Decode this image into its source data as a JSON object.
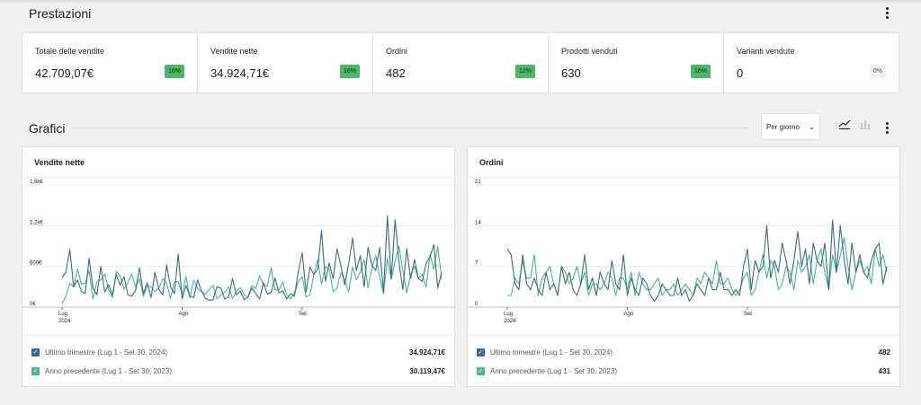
{
  "performance": {
    "title": "Prestazioni",
    "kpis": [
      {
        "label": "Totale delle vendite",
        "value": "42.709,07€",
        "delta": "16%",
        "trend": "up"
      },
      {
        "label": "Vendite nette",
        "value": "34.924,71€",
        "delta": "16%",
        "trend": "up"
      },
      {
        "label": "Ordini",
        "value": "482",
        "delta": "12%",
        "trend": "up"
      },
      {
        "label": "Prodotti venduti",
        "value": "630",
        "delta": "16%",
        "trend": "up"
      },
      {
        "label": "Varianti vendute",
        "value": "0",
        "delta": "0%",
        "trend": "flat"
      }
    ]
  },
  "charts_section": {
    "title": "Grafici",
    "interval_select": {
      "value": "Per giorno"
    },
    "icons": [
      "line-chart-icon",
      "bar-chart-icon",
      "more-vertical-icon"
    ]
  },
  "colors": {
    "current": "#3d6a8c",
    "previous": "#4ab88a",
    "badge_up": "#4ab866"
  },
  "cards": [
    {
      "title": "Vendite nette",
      "legend": [
        {
          "label": "Ultimo trimestre (Lug 1 - Set 30, 2024)",
          "total": "34.924,71€"
        },
        {
          "label": "Anno precedente (Lug 1 - Set 30, 2023)",
          "total": "30.119,47€"
        }
      ]
    },
    {
      "title": "Ordini",
      "legend": [
        {
          "label": "Ultimo trimestre (Lug 1 - Set 30, 2024)",
          "total": "482"
        },
        {
          "label": "Anno precedente (Lug 1 - Set 30, 2023)",
          "total": "431"
        }
      ]
    }
  ],
  "chart_data": [
    {
      "type": "line",
      "title": "Vendite nette",
      "y_ticks": [
        "0€",
        "600€",
        "1,2k€",
        "1,8k€"
      ],
      "ylim": [
        0,
        1800
      ],
      "x_ticks": [
        {
          "day": 0,
          "label": "Lug",
          "sub": "2024"
        },
        {
          "day": 31,
          "label": "Ago",
          "sub": ""
        },
        {
          "day": 62,
          "label": "Set",
          "sub": ""
        }
      ],
      "series": [
        {
          "name": "Ultimo trimestre (Lug 1 - Set 30, 2024)",
          "color": "#3d6a8c",
          "values": [
            430,
            520,
            850,
            300,
            400,
            230,
            200,
            720,
            280,
            180,
            600,
            220,
            330,
            180,
            480,
            320,
            450,
            180,
            160,
            250,
            580,
            200,
            360,
            140,
            510,
            260,
            180,
            620,
            300,
            200,
            780,
            120,
            320,
            160,
            140,
            400,
            240,
            130,
            100,
            110,
            300,
            280,
            120,
            150,
            420,
            180,
            240,
            110,
            150,
            280,
            200,
            120,
            360,
            190,
            220,
            430,
            210,
            240,
            120,
            200,
            160,
            520,
            800,
            220,
            590,
            480,
            560,
            1130,
            380,
            650,
            420,
            860,
            610,
            330,
            640,
            1020,
            540,
            760,
            300,
            880,
            620,
            540,
            880,
            220,
            1350,
            420,
            1290,
            660,
            260,
            860,
            420,
            700,
            420,
            380,
            650,
            740,
            920,
            280,
            510
          ]
        },
        {
          "name": "Anno precedente (Lug 1 - Set 30, 2023)",
          "color": "#4ab88a",
          "values": [
            50,
            160,
            350,
            300,
            560,
            340,
            350,
            540,
            120,
            380,
            400,
            490,
            260,
            140,
            530,
            460,
            260,
            360,
            490,
            290,
            420,
            160,
            310,
            300,
            230,
            280,
            420,
            350,
            130,
            370,
            380,
            180,
            450,
            140,
            400,
            270,
            230,
            190,
            260,
            320,
            120,
            180,
            220,
            300,
            130,
            230,
            290,
            180,
            150,
            320,
            270,
            460,
            330,
            310,
            580,
            250,
            250,
            370,
            180,
            120,
            210,
            370,
            450,
            150,
            180,
            470,
            700,
            340,
            600,
            560,
            230,
            280,
            510,
            410,
            220,
            590,
            400,
            520,
            700,
            280,
            580,
            760,
            450,
            200,
            720,
            410,
            680,
            900,
            540,
            210,
            480,
            600,
            420,
            480,
            290,
            780,
            560,
            900,
            420
          ]
        }
      ]
    },
    {
      "type": "line",
      "title": "Ordini",
      "y_ticks": [
        "0",
        "7",
        "14",
        "21"
      ],
      "ylim": [
        0,
        21
      ],
      "x_ticks": [
        {
          "day": 0,
          "label": "Lug",
          "sub": "2024"
        },
        {
          "day": 31,
          "label": "Ago",
          "sub": ""
        },
        {
          "day": 62,
          "label": "Set",
          "sub": ""
        }
      ],
      "series": [
        {
          "name": "Ultimo trimestre (Lug 1 - Set 30, 2024)",
          "color": "#3d6a8c",
          "values": [
            10,
            9,
            4,
            3,
            9,
            4,
            3,
            5,
            3,
            2,
            6,
            3,
            4,
            2,
            7,
            4,
            6,
            3,
            2,
            4,
            9,
            3,
            5,
            2,
            6,
            4,
            3,
            8,
            4,
            3,
            9,
            2,
            5,
            3,
            2,
            5,
            4,
            2,
            1,
            2,
            4,
            3,
            2,
            2,
            5,
            2,
            3,
            1,
            2,
            4,
            3,
            2,
            5,
            3,
            3,
            6,
            3,
            3,
            2,
            3,
            2,
            7,
            10,
            3,
            8,
            6,
            7,
            14,
            5,
            8,
            6,
            11,
            8,
            4,
            8,
            13,
            7,
            10,
            4,
            11,
            8,
            7,
            11,
            3,
            15,
            6,
            14,
            8,
            4,
            11,
            6,
            9,
            6,
            5,
            8,
            10,
            11,
            4,
            7
          ]
        },
        {
          "name": "Anno precedente (Lug 1 - Set 30, 2023)",
          "color": "#4ab88a",
          "values": [
            2,
            2,
            5,
            4,
            8,
            5,
            5,
            9,
            2,
            5,
            6,
            7,
            4,
            2,
            7,
            6,
            4,
            5,
            7,
            4,
            6,
            2,
            4,
            4,
            3,
            4,
            6,
            5,
            2,
            5,
            5,
            3,
            6,
            2,
            6,
            4,
            3,
            3,
            4,
            5,
            2,
            3,
            3,
            4,
            2,
            3,
            4,
            3,
            2,
            5,
            4,
            6,
            5,
            4,
            8,
            4,
            4,
            5,
            3,
            2,
            3,
            5,
            6,
            2,
            3,
            6,
            9,
            5,
            8,
            7,
            3,
            4,
            7,
            6,
            3,
            8,
            6,
            7,
            9,
            4,
            8,
            10,
            6,
            3,
            9,
            6,
            9,
            12,
            7,
            3,
            6,
            8,
            6,
            7,
            4,
            10,
            7,
            9,
            6
          ]
        }
      ]
    }
  ]
}
